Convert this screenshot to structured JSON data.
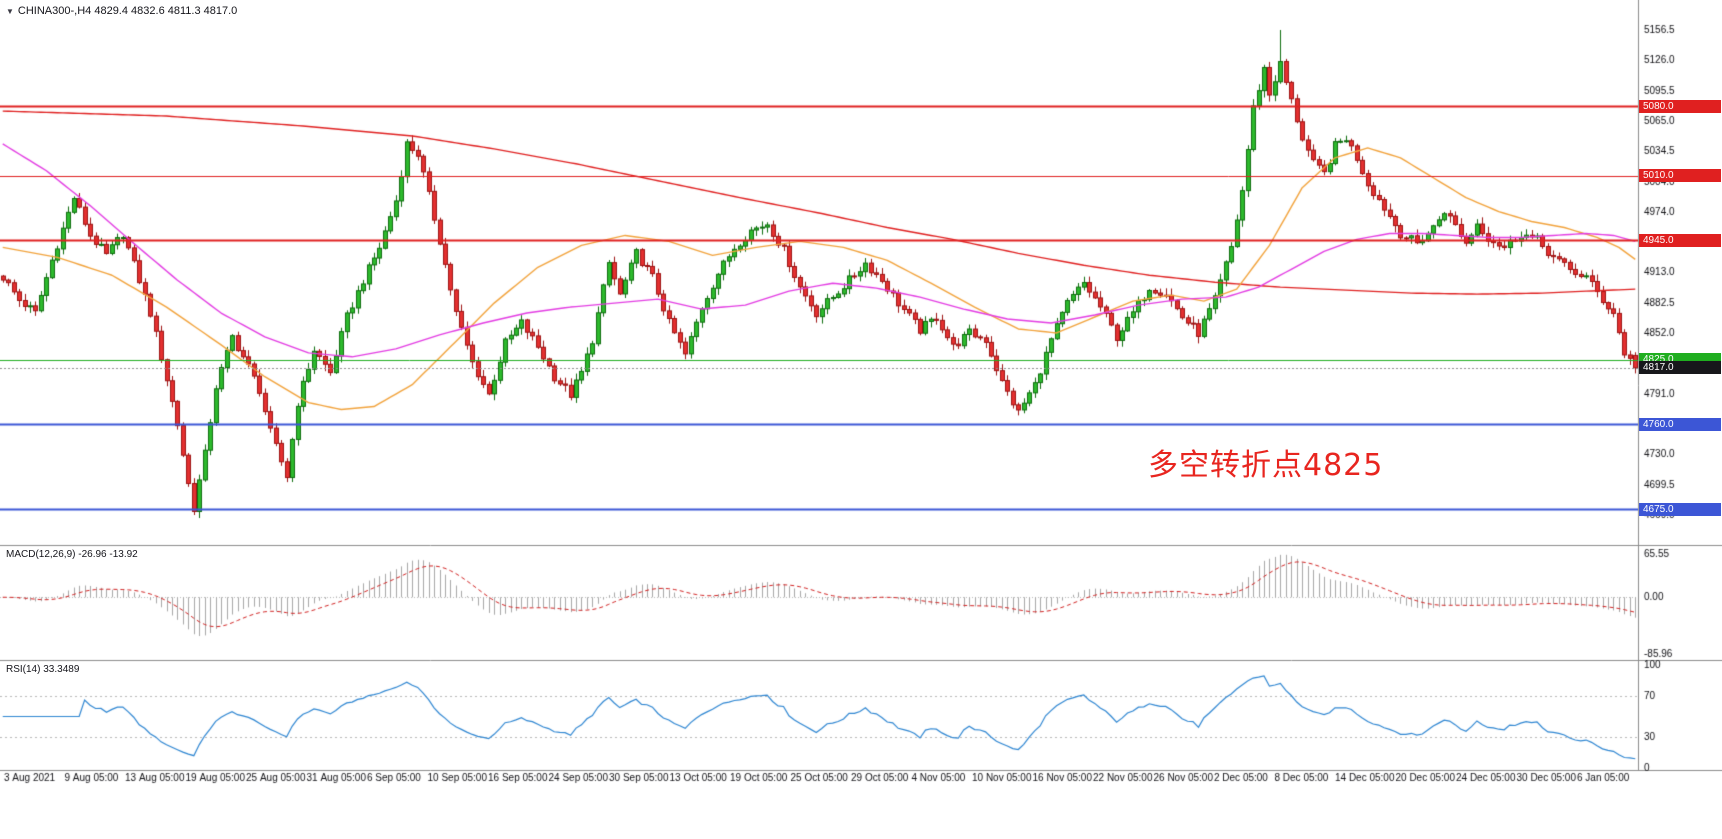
{
  "header": {
    "collapse_icon": "▼",
    "title": "CHINA300-,H4 4829.4 4832.6 4811.3 4817.0"
  },
  "annotation": {
    "text": "多空转折点4825",
    "color": "#e8251f"
  },
  "indicators": {
    "macd": {
      "label": "MACD(12,26,9) -26.96 -13.92",
      "params": {
        "fast": 12,
        "slow": 26,
        "signal": 9
      },
      "axis": [
        "65.55",
        "0.00",
        "-85.96"
      ],
      "range": [
        65.55,
        -85.96
      ]
    },
    "rsi": {
      "label": "RSI(14) 33.3489",
      "period": 14,
      "axis": [
        "100",
        "70",
        "30",
        "0"
      ],
      "axis_values": [
        100,
        70,
        30,
        0
      ],
      "levels": [
        70,
        30
      ]
    }
  },
  "chart_data": {
    "type": "candlestick",
    "symbol": "CHINA300-",
    "timeframe": "H4",
    "ohlc": {
      "open": 4829.4,
      "high": 4832.6,
      "low": 4811.3,
      "close": 4817.0
    },
    "bar_count": 300,
    "price_axis_ticks": [
      5156.5,
      5126.0,
      5095.5,
      5065.0,
      5034.5,
      5004.0,
      4974.0,
      4943.5,
      4913.0,
      4882.5,
      4852.0,
      4821.5,
      4791.0,
      4760.5,
      4730.0,
      4699.5,
      4669.0
    ],
    "time_axis_labels": [
      "3 Aug 2021",
      "9 Aug 05:00",
      "13 Aug 05:00",
      "19 Aug 05:00",
      "25 Aug 05:00",
      "31 Aug 05:00",
      "6 Sep 05:00",
      "10 Sep 05:00",
      "16 Sep 05:00",
      "24 Sep 05:00",
      "30 Sep 05:00",
      "13 Oct 05:00",
      "19 Oct 05:00",
      "25 Oct 05:00",
      "29 Oct 05:00",
      "4 Nov 05:00",
      "10 Nov 05:00",
      "16 Nov 05:00",
      "22 Nov 05:00",
      "26 Nov 05:00",
      "2 Dec 05:00",
      "8 Dec 05:00",
      "14 Dec 05:00",
      "20 Dec 05:00",
      "24 Dec 05:00",
      "30 Dec 05:00",
      "6 Jan 05:00"
    ],
    "close_anchors": [
      [
        0,
        4908
      ],
      [
        3,
        4885
      ],
      [
        6,
        4872
      ],
      [
        9,
        4925
      ],
      [
        13,
        4988
      ],
      [
        16,
        4950
      ],
      [
        19,
        4930
      ],
      [
        22,
        4952
      ],
      [
        25,
        4905
      ],
      [
        27,
        4872
      ],
      [
        29,
        4828
      ],
      [
        32,
        4760
      ],
      [
        34,
        4700
      ],
      [
        35,
        4676
      ],
      [
        37,
        4730
      ],
      [
        39,
        4798
      ],
      [
        42,
        4848
      ],
      [
        45,
        4818
      ],
      [
        47,
        4795
      ],
      [
        49,
        4752
      ],
      [
        52,
        4708
      ],
      [
        54,
        4782
      ],
      [
        57,
        4835
      ],
      [
        60,
        4812
      ],
      [
        63,
        4868
      ],
      [
        66,
        4905
      ],
      [
        69,
        4938
      ],
      [
        72,
        4985
      ],
      [
        74,
        5042
      ],
      [
        76,
        5032
      ],
      [
        78,
        4990
      ],
      [
        80,
        4945
      ],
      [
        83,
        4872
      ],
      [
        86,
        4822
      ],
      [
        89,
        4790
      ],
      [
        92,
        4842
      ],
      [
        95,
        4862
      ],
      [
        98,
        4838
      ],
      [
        101,
        4808
      ],
      [
        104,
        4790
      ],
      [
        106,
        4812
      ],
      [
        108,
        4845
      ],
      [
        111,
        4922
      ],
      [
        113,
        4890
      ],
      [
        116,
        4932
      ],
      [
        119,
        4908
      ],
      [
        122,
        4862
      ],
      [
        125,
        4830
      ],
      [
        128,
        4878
      ],
      [
        131,
        4912
      ],
      [
        134,
        4938
      ],
      [
        137,
        4955
      ],
      [
        140,
        4962
      ],
      [
        143,
        4935
      ],
      [
        146,
        4898
      ],
      [
        149,
        4872
      ],
      [
        152,
        4888
      ],
      [
        155,
        4905
      ],
      [
        158,
        4922
      ],
      [
        161,
        4905
      ],
      [
        164,
        4882
      ],
      [
        168,
        4855
      ],
      [
        171,
        4868
      ],
      [
        174,
        4838
      ],
      [
        177,
        4852
      ],
      [
        180,
        4845
      ],
      [
        183,
        4802
      ],
      [
        186,
        4772
      ],
      [
        189,
        4800
      ],
      [
        192,
        4845
      ],
      [
        195,
        4882
      ],
      [
        198,
        4902
      ],
      [
        201,
        4878
      ],
      [
        204,
        4848
      ],
      [
        207,
        4872
      ],
      [
        210,
        4898
      ],
      [
        213,
        4892
      ],
      [
        216,
        4868
      ],
      [
        219,
        4852
      ],
      [
        222,
        4885
      ],
      [
        225,
        4938
      ],
      [
        227,
        4995
      ],
      [
        229,
        5078
      ],
      [
        231,
        5118
      ],
      [
        232,
        5092
      ],
      [
        234,
        5122
      ],
      [
        236,
        5085
      ],
      [
        238,
        5048
      ],
      [
        240,
        5022
      ],
      [
        242,
        5012
      ],
      [
        244,
        5040
      ],
      [
        246,
        5048
      ],
      [
        248,
        5028
      ],
      [
        250,
        5002
      ],
      [
        253,
        4978
      ],
      [
        256,
        4952
      ],
      [
        259,
        4942
      ],
      [
        262,
        4958
      ],
      [
        264,
        4975
      ],
      [
        266,
        4960
      ],
      [
        268,
        4942
      ],
      [
        270,
        4962
      ],
      [
        272,
        4948
      ],
      [
        275,
        4938
      ],
      [
        278,
        4952
      ],
      [
        281,
        4945
      ],
      [
        284,
        4928
      ],
      [
        287,
        4915
      ],
      [
        290,
        4908
      ],
      [
        293,
        4885
      ],
      [
        295,
        4872
      ],
      [
        297,
        4832
      ],
      [
        299,
        4817
      ]
    ],
    "extremes": {
      "high_bar": 234,
      "high": 5156.5,
      "low_bar": 35,
      "low": 4669.0
    },
    "ma_lines": [
      {
        "name": "ma-slow-red",
        "color": "#e02020",
        "anchors": [
          [
            0,
            5075
          ],
          [
            30,
            5070
          ],
          [
            55,
            5060
          ],
          [
            75,
            5050
          ],
          [
            90,
            5037
          ],
          [
            105,
            5022
          ],
          [
            120,
            5005
          ],
          [
            135,
            4988
          ],
          [
            150,
            4972
          ],
          [
            162,
            4958
          ],
          [
            174,
            4946
          ],
          [
            186,
            4932
          ],
          [
            198,
            4920
          ],
          [
            210,
            4910
          ],
          [
            222,
            4903
          ],
          [
            234,
            4898
          ],
          [
            246,
            4895
          ],
          [
            258,
            4892
          ],
          [
            270,
            4891
          ],
          [
            282,
            4892
          ],
          [
            290,
            4894
          ],
          [
            299,
            4896
          ]
        ]
      },
      {
        "name": "ma-medium-orange",
        "color": "#f2a33c",
        "anchors": [
          [
            0,
            4938
          ],
          [
            10,
            4928
          ],
          [
            20,
            4910
          ],
          [
            30,
            4878
          ],
          [
            40,
            4840
          ],
          [
            48,
            4808
          ],
          [
            56,
            4782
          ],
          [
            62,
            4775
          ],
          [
            68,
            4778
          ],
          [
            75,
            4800
          ],
          [
            82,
            4838
          ],
          [
            90,
            4882
          ],
          [
            98,
            4918
          ],
          [
            106,
            4940
          ],
          [
            114,
            4950
          ],
          [
            122,
            4944
          ],
          [
            130,
            4930
          ],
          [
            138,
            4938
          ],
          [
            146,
            4944
          ],
          [
            154,
            4938
          ],
          [
            162,
            4925
          ],
          [
            170,
            4902
          ],
          [
            178,
            4878
          ],
          [
            186,
            4856
          ],
          [
            193,
            4852
          ],
          [
            200,
            4868
          ],
          [
            207,
            4884
          ],
          [
            214,
            4890
          ],
          [
            220,
            4884
          ],
          [
            226,
            4896
          ],
          [
            232,
            4940
          ],
          [
            238,
            4998
          ],
          [
            244,
            5028
          ],
          [
            250,
            5038
          ],
          [
            256,
            5028
          ],
          [
            262,
            5008
          ],
          [
            268,
            4988
          ],
          [
            274,
            4974
          ],
          [
            280,
            4964
          ],
          [
            286,
            4958
          ],
          [
            292,
            4948
          ],
          [
            296,
            4938
          ],
          [
            299,
            4926
          ]
        ]
      },
      {
        "name": "ma-fast-magenta",
        "color": "#e33ce3",
        "anchors": [
          [
            0,
            5042
          ],
          [
            8,
            5015
          ],
          [
            16,
            4980
          ],
          [
            24,
            4942
          ],
          [
            32,
            4905
          ],
          [
            40,
            4872
          ],
          [
            48,
            4848
          ],
          [
            56,
            4832
          ],
          [
            64,
            4828
          ],
          [
            72,
            4836
          ],
          [
            80,
            4850
          ],
          [
            88,
            4862
          ],
          [
            96,
            4872
          ],
          [
            104,
            4878
          ],
          [
            112,
            4882
          ],
          [
            120,
            4886
          ],
          [
            128,
            4876
          ],
          [
            136,
            4880
          ],
          [
            144,
            4894
          ],
          [
            152,
            4902
          ],
          [
            160,
            4897
          ],
          [
            168,
            4888
          ],
          [
            176,
            4876
          ],
          [
            184,
            4866
          ],
          [
            192,
            4862
          ],
          [
            200,
            4870
          ],
          [
            208,
            4880
          ],
          [
            216,
            4886
          ],
          [
            224,
            4888
          ],
          [
            230,
            4898
          ],
          [
            236,
            4916
          ],
          [
            242,
            4934
          ],
          [
            248,
            4946
          ],
          [
            254,
            4952
          ],
          [
            260,
            4952
          ],
          [
            266,
            4950
          ],
          [
            272,
            4948
          ],
          [
            278,
            4948
          ],
          [
            284,
            4950
          ],
          [
            290,
            4952
          ],
          [
            295,
            4950
          ],
          [
            299,
            4944
          ]
        ]
      }
    ],
    "levels": [
      {
        "price": 5080.0,
        "label": "5080.0",
        "color": "#e02020",
        "line_color": "#e02020",
        "width": 2,
        "style": "solid",
        "kind": "resistance"
      },
      {
        "price": 5010.0,
        "label": "5010.0",
        "color": "#e02020",
        "line_color": "#e02020",
        "width": 1,
        "style": "solid",
        "kind": "resistance"
      },
      {
        "price": 4945.0,
        "label": "4945.0",
        "color": "#e02020",
        "line_color": "#e02020",
        "width": 2,
        "style": "solid",
        "kind": "resistance"
      },
      {
        "price": 4825.0,
        "label": "4825.0",
        "color": "#1fae1f",
        "line_color": "#1fae1f",
        "width": 1,
        "style": "solid",
        "kind": "pivot"
      },
      {
        "price": 4817.0,
        "label": "4817.0",
        "color": "#17171b",
        "line_color": "#909090",
        "width": 1,
        "style": "dotted",
        "kind": "last-price"
      },
      {
        "price": 4760.0,
        "label": "4760.0",
        "color": "#3c56d6",
        "line_color": "#3c56d6",
        "width": 2,
        "style": "solid",
        "kind": "support"
      },
      {
        "price": 4675.0,
        "label": "4675.0",
        "color": "#3c56d6",
        "line_color": "#3c56d6",
        "width": 2,
        "style": "solid",
        "kind": "support"
      }
    ],
    "colors": {
      "up": "#2db92d",
      "up_border": "#0e6e0e",
      "down": "#e33030",
      "down_border": "#9e1313",
      "macd_hist": "#a8a8a8",
      "macd_signal": "#d22222",
      "rsi": "#2e86d2"
    }
  }
}
